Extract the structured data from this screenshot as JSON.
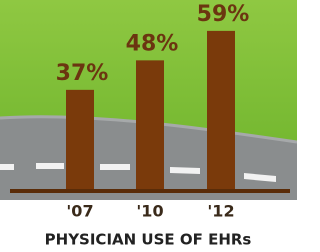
{
  "chart_data": {
    "type": "bar",
    "title": "PHYSICIAN USE OF EHRs",
    "categories": [
      "'07",
      "'10",
      "'12"
    ],
    "values": [
      37,
      48,
      59
    ],
    "value_labels": [
      "37%",
      "48%",
      "59%"
    ],
    "color": "#7a3a0b"
  }
}
